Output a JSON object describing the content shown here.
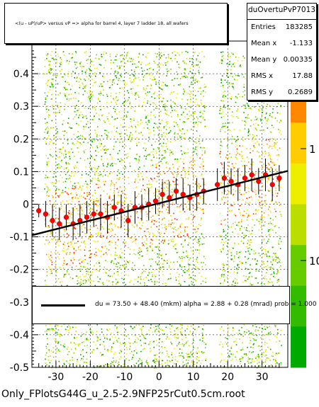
{
  "chart_data": {
    "type": "scatter",
    "title": "<(u - uP)/uP> versus   vP => alpha for barrel 4, layer 7 ladder 18, all wafers",
    "xlim": [
      -37,
      37.5
    ],
    "ylim": [
      -0.5,
      0.5
    ],
    "x_ticks": [
      "-30",
      "-20",
      "-10",
      "0",
      "10",
      "20",
      "30"
    ],
    "y_ticks": [
      "-0.5",
      "-0.4",
      "-0.3",
      "-0.2",
      "-0.1",
      "0",
      "0.1",
      "0.2",
      "0.3",
      "0.4"
    ],
    "z_scale": "log",
    "z_ticks": [
      "1",
      "10"
    ],
    "grid": true,
    "colormap": [
      "#00aa00",
      "#66cc00",
      "#bbdd00",
      "#eeee00",
      "#ffcc00",
      "#ff8800",
      "#ff2200"
    ],
    "profile_color": "#ff0000",
    "points": [
      {
        "x": -35,
        "y": -0.02,
        "err": 0.02
      },
      {
        "x": -33,
        "y": -0.03,
        "err": 0.04
      },
      {
        "x": -31,
        "y": -0.05,
        "err": 0.05
      },
      {
        "x": -29,
        "y": -0.06,
        "err": 0.05
      },
      {
        "x": -27,
        "y": -0.04,
        "err": 0.04
      },
      {
        "x": -25,
        "y": -0.06,
        "err": 0.05
      },
      {
        "x": -23,
        "y": -0.05,
        "err": 0.05
      },
      {
        "x": -21,
        "y": -0.04,
        "err": 0.05
      },
      {
        "x": -19,
        "y": -0.03,
        "err": 0.04
      },
      {
        "x": -17,
        "y": -0.03,
        "err": 0.05
      },
      {
        "x": -15,
        "y": -0.04,
        "err": 0.05
      },
      {
        "x": -13,
        "y": -0.01,
        "err": 0.04
      },
      {
        "x": -11,
        "y": -0.02,
        "err": 0.05
      },
      {
        "x": -9,
        "y": -0.05,
        "err": 0.05
      },
      {
        "x": -7,
        "y": -0.01,
        "err": 0.05
      },
      {
        "x": -5,
        "y": -0.01,
        "err": 0.04
      },
      {
        "x": -3,
        "y": 0.0,
        "err": 0.05
      },
      {
        "x": -1,
        "y": 0.01,
        "err": 0.04
      },
      {
        "x": 1,
        "y": 0.03,
        "err": 0.04
      },
      {
        "x": 3,
        "y": 0.02,
        "err": 0.05
      },
      {
        "x": 5,
        "y": 0.04,
        "err": 0.04
      },
      {
        "x": 7,
        "y": 0.03,
        "err": 0.05
      },
      {
        "x": 9,
        "y": 0.02,
        "err": 0.04
      },
      {
        "x": 11,
        "y": 0.03,
        "err": 0.05
      },
      {
        "x": 13,
        "y": 0.04,
        "err": 0.04
      },
      {
        "x": 17,
        "y": 0.06,
        "err": 0.05
      },
      {
        "x": 19,
        "y": 0.08,
        "err": 0.05
      },
      {
        "x": 21,
        "y": 0.07,
        "err": 0.04
      },
      {
        "x": 23,
        "y": 0.06,
        "err": 0.05
      },
      {
        "x": 25,
        "y": 0.08,
        "err": 0.04
      },
      {
        "x": 27,
        "y": 0.09,
        "err": 0.05
      },
      {
        "x": 29,
        "y": 0.07,
        "err": 0.04
      },
      {
        "x": 31,
        "y": 0.09,
        "err": 0.05
      },
      {
        "x": 33,
        "y": 0.06,
        "err": 0.05
      },
      {
        "x": 35,
        "y": 0.08,
        "err": 0.04
      }
    ],
    "fit_line": {
      "x": [
        -37,
        37.5
      ],
      "y": [
        -0.095,
        0.102
      ]
    }
  },
  "stats": {
    "name": "duOvertuPvP7013",
    "rows": [
      {
        "label": "Entries",
        "value": "183285"
      },
      {
        "label": "Mean x",
        "value": "-1.133"
      },
      {
        "label": "Mean y",
        "value": "0.00335"
      },
      {
        "label": "RMS x",
        "value": "17.88"
      },
      {
        "label": "RMS y",
        "value": "0.2689"
      }
    ]
  },
  "legend": {
    "text": "du =   73.50 +  48.40 (mkm) alpha =     2.88 +   0.28 (mrad) prob = 1.000"
  },
  "footer": "Only_FPlotsG44G_u_2.5-2.9NFP25rCut0.5cm.root"
}
